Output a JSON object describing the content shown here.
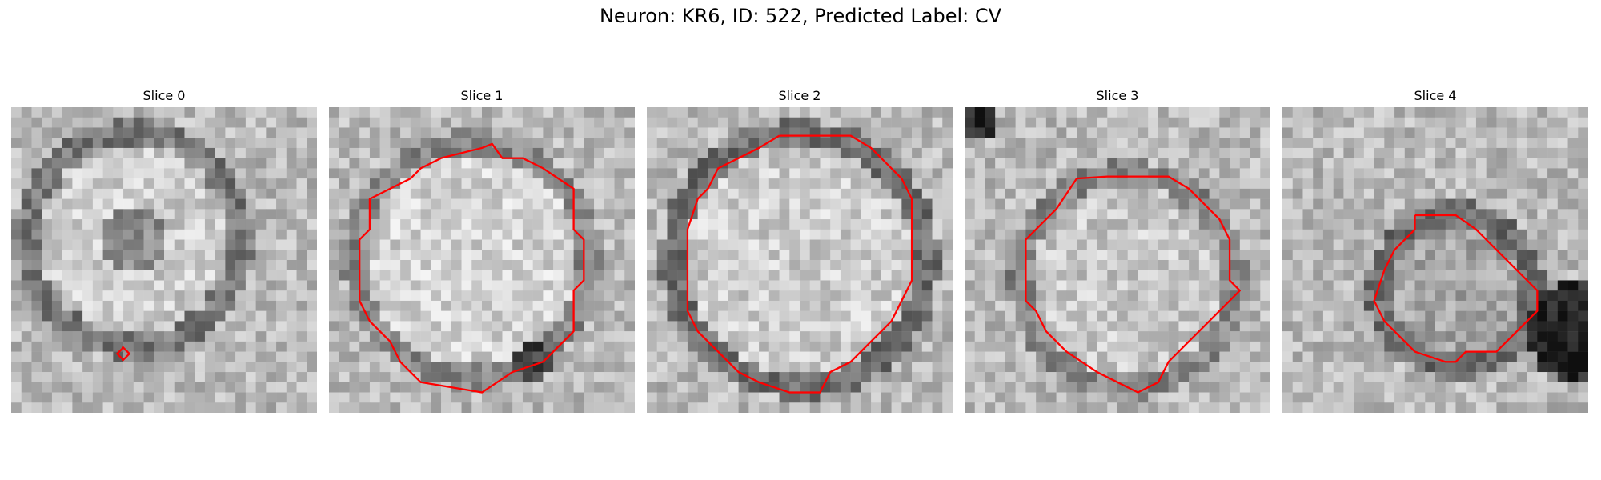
{
  "figure": {
    "title": "Neuron: KR6, ID: 522, Predicted Label: CV"
  },
  "panels": [
    {
      "title": "Slice 0"
    },
    {
      "title": "Slice 1"
    },
    {
      "title": "Slice 2"
    },
    {
      "title": "Slice 3"
    },
    {
      "title": "Slice 4"
    }
  ],
  "colors": {
    "contour": "#ff0000",
    "background": "#ffffff"
  }
}
